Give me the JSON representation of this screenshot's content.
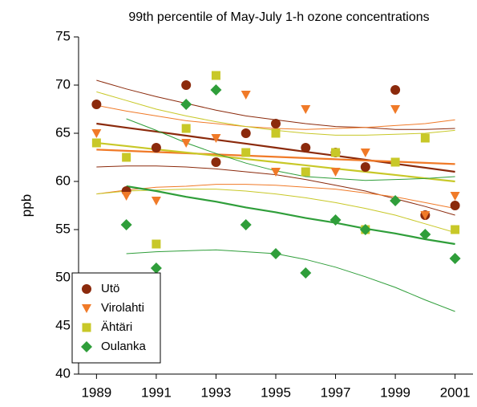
{
  "chart_data": {
    "type": "scatter",
    "title": "99th percentile of May-July 1-h ozone concentrations",
    "y_label": "ppb",
    "x": [
      1989,
      1990,
      1991,
      1992,
      1993,
      1994,
      1995,
      1996,
      1997,
      1998,
      1999,
      2000,
      2001
    ],
    "xlim": [
      1988.4,
      2001.6
    ],
    "xticks": [
      1989,
      1991,
      1993,
      1995,
      1997,
      1999,
      2001
    ],
    "ylim": [
      40,
      75
    ],
    "yticks": [
      40,
      45,
      50,
      55,
      60,
      65,
      70,
      75
    ],
    "legend_position": "lower left",
    "series": [
      {
        "name": "Utö",
        "color": "#8b2a0c",
        "marker": "circle",
        "values": [
          68,
          59,
          63.5,
          70,
          62,
          65,
          66,
          63.5,
          63,
          61.5,
          69.5,
          56.5,
          57.5
        ],
        "trend": [
          66,
          65.58,
          65.17,
          64.75,
          64.33,
          63.92,
          63.5,
          63.08,
          62.67,
          62.25,
          61.83,
          61.42,
          61
        ],
        "upper": [
          70.5,
          69.6,
          68.8,
          68.1,
          67.4,
          66.8,
          66.4,
          66.0,
          65.7,
          65.6,
          65.4,
          65.4,
          65.5
        ],
        "lower": [
          61.5,
          61.6,
          61.6,
          61.5,
          61.3,
          61.0,
          60.7,
          60.2,
          59.6,
          59.0,
          58.2,
          57.4,
          56.5
        ]
      },
      {
        "name": "Virolahti",
        "color": "#f07a28",
        "marker": "triangle-down",
        "values": [
          65,
          58.5,
          58,
          64,
          64.5,
          69,
          61,
          67.5,
          61,
          63,
          67.5,
          56.5,
          58.5
        ],
        "trend": [
          63.3,
          63.18,
          63.05,
          62.93,
          62.8,
          62.68,
          62.55,
          62.43,
          62.3,
          62.18,
          62.05,
          61.93,
          61.8
        ],
        "upper": [
          67.9,
          67.3,
          66.8,
          66.3,
          66.0,
          65.7,
          65.5,
          65.4,
          65.5,
          65.6,
          65.8,
          66.0,
          66.4
        ],
        "lower": [
          58.7,
          59.1,
          59.4,
          59.5,
          59.7,
          59.7,
          59.6,
          59.4,
          59.2,
          58.8,
          58.4,
          57.8,
          57.2
        ]
      },
      {
        "name": "Ähtäri",
        "color": "#c8c828",
        "marker": "square",
        "values": [
          64,
          62.5,
          53.5,
          65.5,
          71,
          63,
          65,
          61,
          63,
          55,
          62,
          64.5,
          55
        ],
        "trend": [
          64,
          63.67,
          63.33,
          63,
          62.67,
          62.33,
          62,
          61.67,
          61.33,
          61,
          60.67,
          60.33,
          60
        ],
        "upper": [
          69.3,
          68.4,
          67.5,
          66.8,
          66.2,
          65.7,
          65.3,
          65.0,
          64.8,
          64.8,
          64.9,
          65.0,
          65.3
        ],
        "lower": [
          58.7,
          59.0,
          59.1,
          59.2,
          59.2,
          59.0,
          58.7,
          58.3,
          57.8,
          57.2,
          56.5,
          55.6,
          54.7
        ]
      },
      {
        "name": "Oulanka",
        "color": "#2f9e3a",
        "marker": "diamond",
        "values": [
          null,
          55.5,
          51,
          68,
          69.5,
          55.5,
          52.5,
          50.5,
          56,
          55,
          58,
          54.5,
          52
        ],
        "trend": [
          null,
          59.5,
          59.0,
          58.4,
          57.9,
          57.3,
          56.8,
          56.2,
          55.7,
          55.1,
          54.6,
          54.0,
          53.5
        ],
        "upper": [
          null,
          66.5,
          65.3,
          64.0,
          62.9,
          61.9,
          61.1,
          60.5,
          60.3,
          60.1,
          60.2,
          60.3,
          60.5
        ],
        "lower": [
          null,
          52.5,
          52.7,
          52.8,
          52.9,
          52.7,
          52.5,
          51.9,
          51.1,
          50.1,
          49.0,
          47.7,
          46.5
        ]
      }
    ]
  }
}
